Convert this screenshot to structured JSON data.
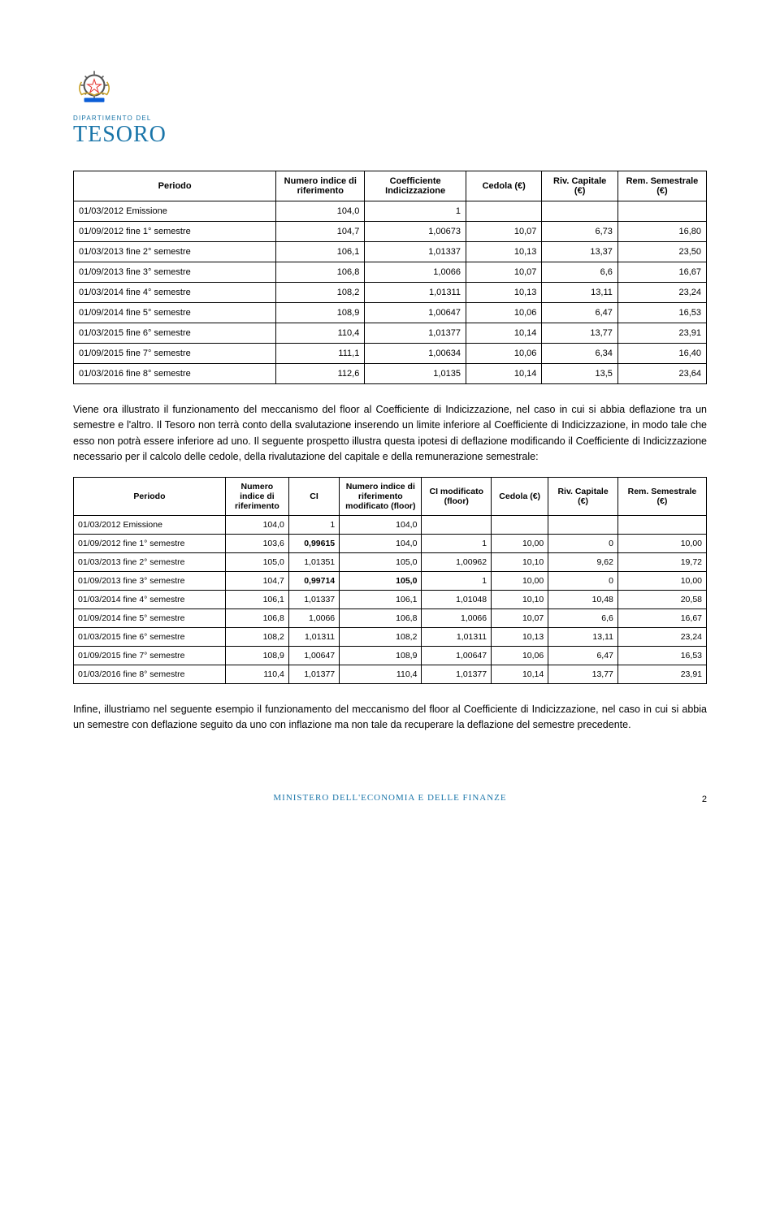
{
  "logo": {
    "dept_line": "DIPARTIMENTO DEL",
    "name": "TESORO",
    "emblem_colors": {
      "gold": "#c9a227",
      "blue": "#0b5ed7",
      "white": "#ffffff",
      "gear": "#555555",
      "star": "#e53935"
    }
  },
  "table1": {
    "headers": [
      "Periodo",
      "Numero indice di riferimento",
      "Coefficiente Indicizzazione",
      "Cedola (€)",
      "Riv. Capitale (€)",
      "Rem. Semestrale (€)"
    ],
    "rows": [
      [
        "01/03/2012 Emissione",
        "104,0",
        "1",
        "",
        "",
        ""
      ],
      [
        "01/09/2012 fine 1° semestre",
        "104,7",
        "1,00673",
        "10,07",
        "6,73",
        "16,80"
      ],
      [
        "01/03/2013 fine 2° semestre",
        "106,1",
        "1,01337",
        "10,13",
        "13,37",
        "23,50"
      ],
      [
        "01/09/2013 fine 3° semestre",
        "106,8",
        "1,0066",
        "10,07",
        "6,6",
        "16,67"
      ],
      [
        "01/03/2014 fine 4° semestre",
        "108,2",
        "1,01311",
        "10,13",
        "13,11",
        "23,24"
      ],
      [
        "01/09/2014 fine 5° semestre",
        "108,9",
        "1,00647",
        "10,06",
        "6,47",
        "16,53"
      ],
      [
        "01/03/2015 fine 6° semestre",
        "110,4",
        "1,01377",
        "10,14",
        "13,77",
        "23,91"
      ],
      [
        "01/09/2015 fine 7° semestre",
        "111,1",
        "1,00634",
        "10,06",
        "6,34",
        "16,40"
      ],
      [
        "01/03/2016 fine 8° semestre",
        "112,6",
        "1,0135",
        "10,14",
        "13,5",
        "23,64"
      ]
    ],
    "col_widths": [
      "32%",
      "14%",
      "16%",
      "12%",
      "12%",
      "14%"
    ]
  },
  "para1": "Viene ora illustrato il funzionamento del meccanismo del floor al Coefficiente di Indicizzazione, nel caso in cui si abbia deflazione tra un semestre e l'altro. Il Tesoro non terrà conto della svalutazione inserendo un limite inferiore al Coefficiente di Indicizzazione, in modo tale che esso non potrà essere inferiore ad uno. Il seguente prospetto illustra questa ipotesi di deflazione modificando il Coefficiente di Indicizzazione necessario per il calcolo delle cedole, della rivalutazione del capitale e della remunerazione semestrale:",
  "table2": {
    "headers": [
      "Periodo",
      "Numero indice di riferimento",
      "CI",
      "Numero indice di riferimento modificato (floor)",
      "CI modificato (floor)",
      "Cedola (€)",
      "Riv. Capitale (€)",
      "Rem. Semestrale (€)"
    ],
    "rows": [
      [
        "01/03/2012 Emissione",
        "104,0",
        "1",
        "104,0",
        "",
        "",
        "",
        ""
      ],
      [
        "01/09/2012 fine 1° semestre",
        "103,6",
        "0,99615",
        "104,0",
        "1",
        "10,00",
        "0",
        "10,00"
      ],
      [
        "01/03/2013 fine 2° semestre",
        "105,0",
        "1,01351",
        "105,0",
        "1,00962",
        "10,10",
        "9,62",
        "19,72"
      ],
      [
        "01/09/2013 fine 3° semestre",
        "104,7",
        "0,99714",
        "105,0",
        "1",
        "10,00",
        "0",
        "10,00"
      ],
      [
        "01/03/2014 fine 4° semestre",
        "106,1",
        "1,01337",
        "106,1",
        "1,01048",
        "10,10",
        "10,48",
        "20,58"
      ],
      [
        "01/09/2014 fine 5° semestre",
        "106,8",
        "1,0066",
        "106,8",
        "1,0066",
        "10,07",
        "6,6",
        "16,67"
      ],
      [
        "01/03/2015 fine 6° semestre",
        "108,2",
        "1,01311",
        "108,2",
        "1,01311",
        "10,13",
        "13,11",
        "23,24"
      ],
      [
        "01/09/2015 fine 7° semestre",
        "108,9",
        "1,00647",
        "108,9",
        "1,00647",
        "10,06",
        "6,47",
        "16,53"
      ],
      [
        "01/03/2016 fine 8° semestre",
        "110,4",
        "1,01377",
        "110,4",
        "1,01377",
        "10,14",
        "13,77",
        "23,91"
      ]
    ],
    "col_widths": [
      "24%",
      "10%",
      "8%",
      "13%",
      "11%",
      "9%",
      "11%",
      "14%"
    ],
    "bold_cells": [
      [
        1,
        2
      ],
      [
        3,
        2
      ],
      [
        3,
        3
      ]
    ]
  },
  "para2": "Infine, illustriamo nel seguente esempio il funzionamento del meccanismo del floor al Coefficiente di Indicizzazione, nel caso in cui si abbia un semestre con deflazione seguito da uno con inflazione ma non tale da recuperare la deflazione del semestre precedente.",
  "footer": {
    "ministry": "MINISTERO DELL'ECONOMIA E DELLE FINANZE",
    "page": "2"
  },
  "style": {
    "brand_color": "#1a75a9",
    "text_color": "#000000",
    "background": "#ffffff",
    "body_fontsize": 12.5,
    "table_fontsize": 11
  }
}
